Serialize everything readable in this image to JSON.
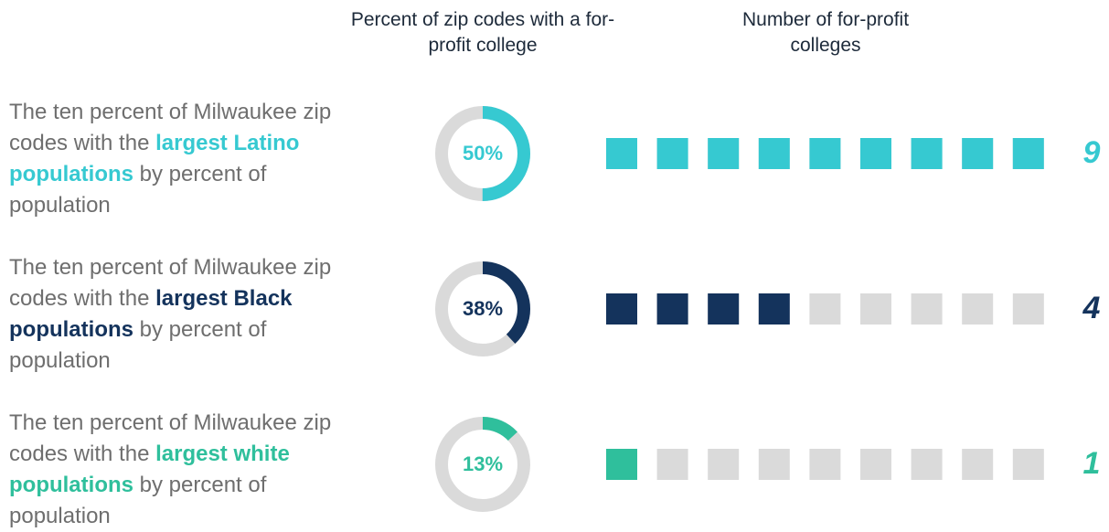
{
  "headers": {
    "percent": "Percent of zip codes with a for-profit college",
    "count": "Number of for-profit colleges"
  },
  "rows": [
    {
      "label_pre": "The ten percent of Milwaukee zip codes with the",
      "label_bold": "largest Latino populations",
      "label_post": "by percent of population",
      "percent": 50,
      "percent_label": "50%",
      "count": 9,
      "color": "#36c9d1"
    },
    {
      "label_pre": "The ten percent of Milwaukee zip codes with the",
      "label_bold": "largest Black populations",
      "label_post": "by percent of population",
      "percent": 38,
      "percent_label": "38%",
      "count": 4,
      "color": "#14335c"
    },
    {
      "label_pre": "The ten percent of Milwaukee zip codes with the",
      "label_bold": "largest white populations",
      "label_post": "by percent of population",
      "percent": 13,
      "percent_label": "13%",
      "count": 1,
      "color": "#2fbf9c"
    }
  ]
}
